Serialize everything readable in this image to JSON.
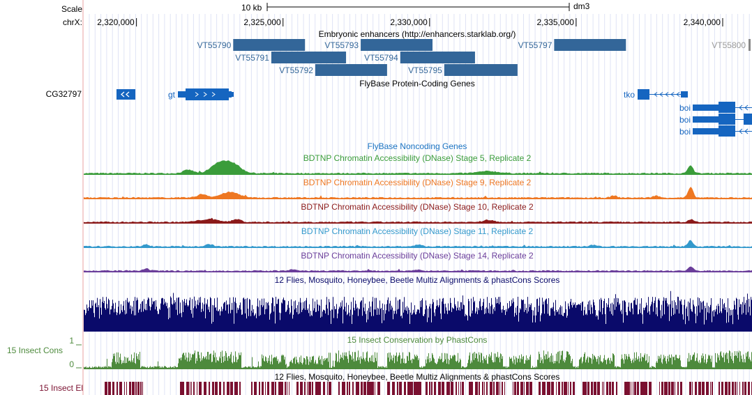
{
  "header": {
    "scale_label": "Scale",
    "chrom_label": "chrX:",
    "scale_bar_label": "10 kb",
    "assembly": "dm3",
    "positions": [
      {
        "label": "2,320,000",
        "pos": 2320000
      },
      {
        "label": "2,325,000",
        "pos": 2325000
      },
      {
        "label": "2,330,000",
        "pos": 2330000
      },
      {
        "label": "2,335,000",
        "pos": 2335000
      },
      {
        "label": "2,340,000",
        "pos": 2340000
      }
    ]
  },
  "tracks": {
    "enhancers": {
      "title": "Embryonic enhancers (http://enhancers.starklab.org/)",
      "color": "#336699",
      "items": [
        {
          "name": "VT55790",
          "start": 2323300,
          "end": 2325750,
          "row": 0
        },
        {
          "name": "VT55791",
          "start": 2324600,
          "end": 2327150,
          "row": 1
        },
        {
          "name": "VT55792",
          "start": 2326100,
          "end": 2328550,
          "row": 2
        },
        {
          "name": "VT55793",
          "start": 2327650,
          "end": 2330100,
          "row": 0
        },
        {
          "name": "VT55794",
          "start": 2329000,
          "end": 2331550,
          "row": 1
        },
        {
          "name": "VT55795",
          "start": 2330500,
          "end": 2333000,
          "row": 2
        },
        {
          "name": "VT55797",
          "start": 2334250,
          "end": 2336700,
          "row": 0
        },
        {
          "name": "VT55800",
          "start": 2340500,
          "end": 2341500,
          "row": 0,
          "faded": true
        }
      ]
    },
    "coding_genes": {
      "title": "FlyBase Protein-Coding Genes",
      "color": "#1565c0",
      "offscreen_label": "CG32797",
      "genes": [
        {
          "name": "gt",
          "start": 2322380,
          "end": 2325160
        },
        {
          "name": "tko",
          "start": 2337010,
          "end": 2338900
        },
        {
          "name": "boi",
          "start": 2338940,
          "end": 2341300
        },
        {
          "name": "boi",
          "start": 2338940,
          "end": 2341300
        },
        {
          "name": "boi",
          "start": 2338940,
          "end": 2341300
        }
      ]
    },
    "noncoding_genes": {
      "title": "FlyBase Noncoding Genes",
      "color": "#1a73c2"
    },
    "dnase": [
      {
        "title": "BDTNP Chromatin Accessibility (DNase) Stage 5, Replicate 2",
        "color": "#3a9c3a"
      },
      {
        "title": "BDTNP Chromatin Accessibility (DNase) Stage 9, Replicate 2",
        "color": "#ee7722"
      },
      {
        "title": "BDTNP Chromatin Accessibility (DNase) Stage 10, Replicate 2",
        "color": "#8b1a1a"
      },
      {
        "title": "BDTNP Chromatin Accessibility (DNase) Stage 11, Replicate 2",
        "color": "#3399cc"
      },
      {
        "title": "BDTNP Chromatin Accessibility (DNase) Stage 14, Replicate 2",
        "color": "#6a3d9a"
      }
    ],
    "multiz": {
      "title": "12 Flies, Mosquito, Honeybee, Beetle Multiz Alignments & phastCons Scores",
      "color": "#0a0a6a"
    },
    "insect_cons": {
      "title": "15 Insect Conservation by PhastCons",
      "side_label": "15 Insect Cons",
      "axis_max": "1",
      "axis_min": "0",
      "color": "#4d8a3c"
    },
    "insect_el": {
      "title": "12 Flies, Mosquito, Honeybee, Beetle Multiz Alignments & phastCons Scores",
      "side_label": "15 Insect El",
      "color": "#7a1030"
    }
  }
}
